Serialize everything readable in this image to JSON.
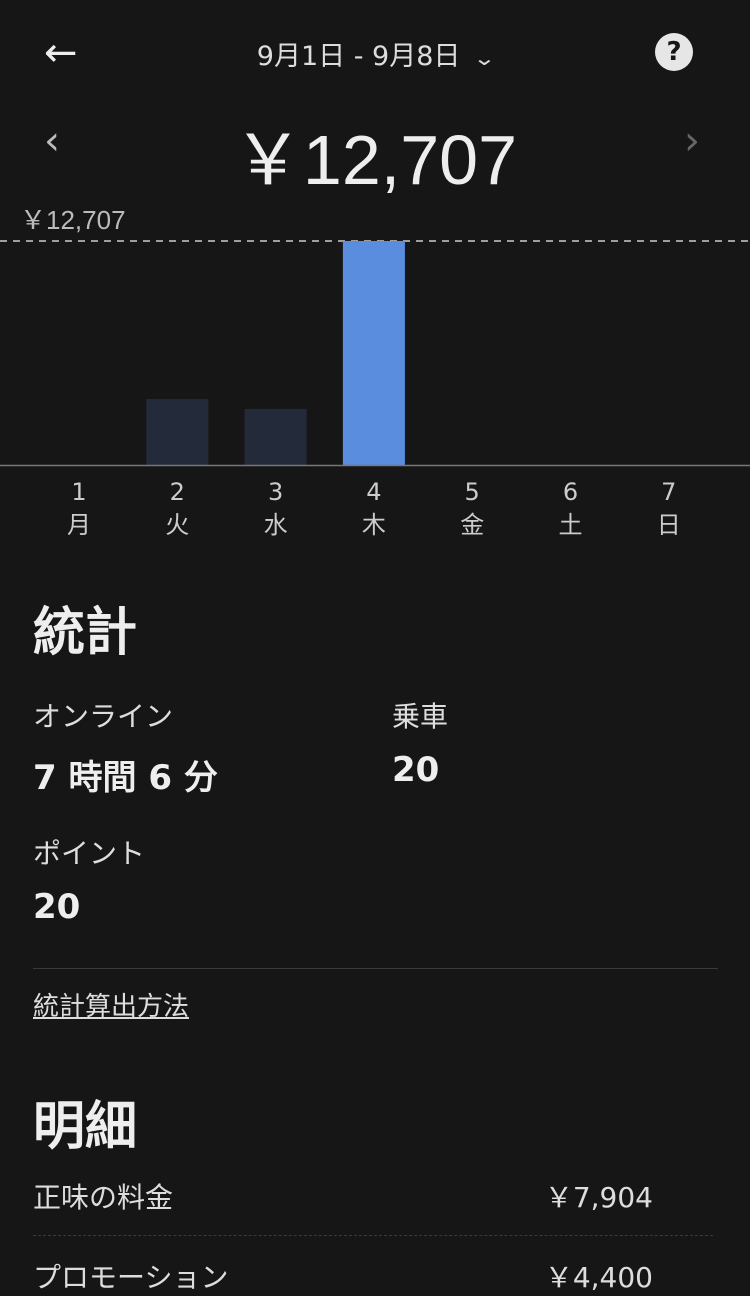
{
  "header": {
    "back_icon": "arrow-left-icon",
    "date_range": "9月1日 - 9月8日",
    "dropdown_icon": "chevron-down-icon",
    "help_icon": "question-circle-icon"
  },
  "summary": {
    "total": "￥12,707",
    "prev_icon": "chevron-left-icon",
    "next_icon": "chevron-right-icon"
  },
  "chart_data": {
    "type": "bar",
    "max_label": "￥12,707",
    "categories": [
      {
        "day": "1",
        "weekday": "月"
      },
      {
        "day": "2",
        "weekday": "火"
      },
      {
        "day": "3",
        "weekday": "水"
      },
      {
        "day": "4",
        "weekday": "木"
      },
      {
        "day": "5",
        "weekday": "金"
      },
      {
        "day": "6",
        "weekday": "土"
      },
      {
        "day": "7",
        "weekday": "日"
      }
    ],
    "values": [
      0,
      3740,
      3180,
      12707,
      0,
      0,
      0
    ],
    "ylim": [
      0,
      12707
    ],
    "selected_index": 3,
    "colors": {
      "selected": "#5b8ddf",
      "default": "#232b3a",
      "baseline": "#777777",
      "max_line": "#cccccc"
    }
  },
  "stats": {
    "title": "統計",
    "online_label": "オンライン",
    "online_value": "7 時間 6 分",
    "rides_label": "乗車",
    "rides_value": "20",
    "points_label": "ポイント",
    "points_value": "20",
    "method_link": "統計算出方法"
  },
  "breakdown": {
    "title": "明細",
    "rows": [
      {
        "label": "正味の料金",
        "value": "￥7,904"
      },
      {
        "label": "プロモーション",
        "value": "￥4,400"
      }
    ]
  }
}
